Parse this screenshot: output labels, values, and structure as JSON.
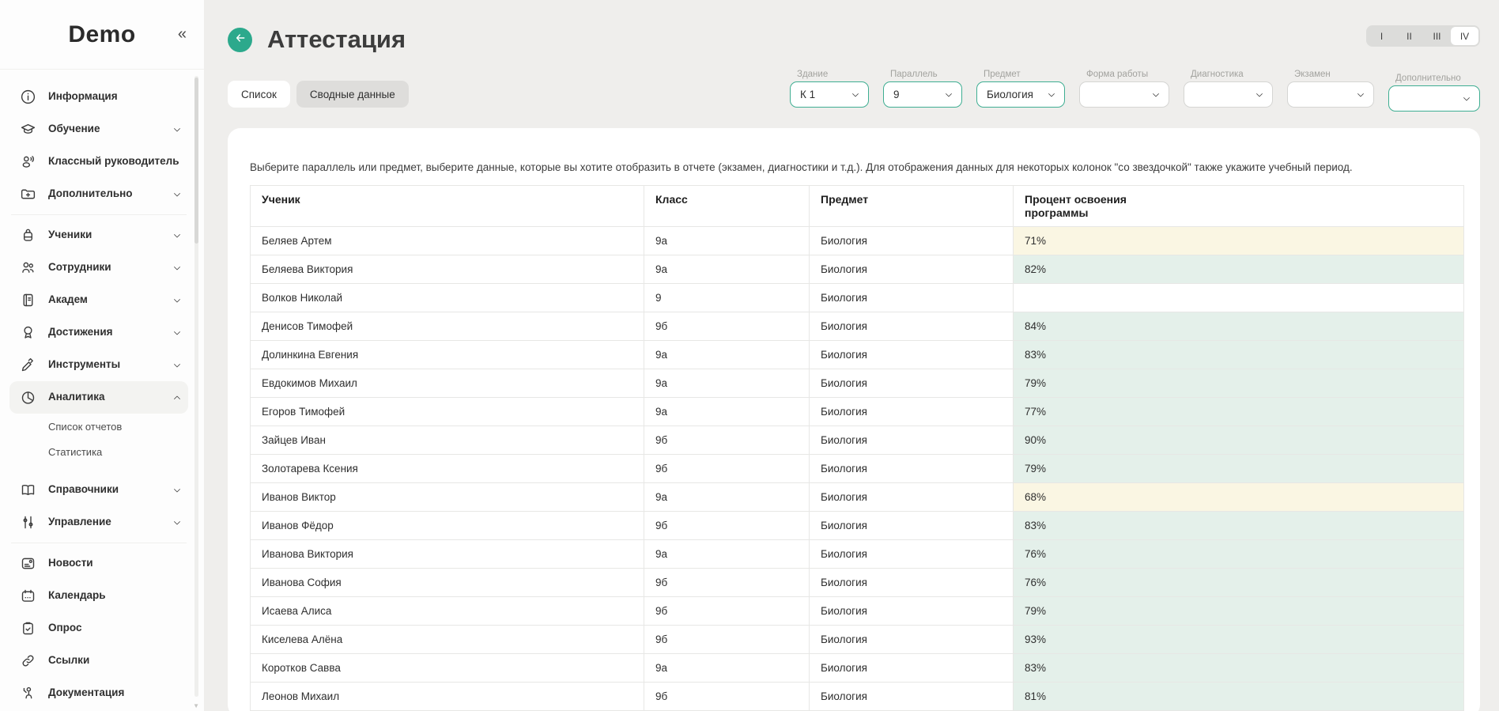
{
  "sidebar": {
    "logo": "Demo",
    "collapse_icon": "«",
    "items": [
      {
        "label": "Информация",
        "icon": "info-icon"
      },
      {
        "label": "Обучение",
        "icon": "education-icon"
      },
      {
        "label": "Классный руководитель",
        "icon": "class-teacher-icon"
      },
      {
        "label": "Дополнительно",
        "icon": "folder-plus-icon"
      },
      {
        "label": "Ученики",
        "icon": "backpack-icon"
      },
      {
        "label": "Сотрудники",
        "icon": "staff-icon"
      },
      {
        "label": "Академ",
        "icon": "journal-icon"
      },
      {
        "label": "Достижения",
        "icon": "medal-icon"
      },
      {
        "label": "Инструменты",
        "icon": "tools-icon"
      },
      {
        "label": "Аналитика",
        "icon": "pie-chart-icon",
        "active": true,
        "expanded": true
      },
      {
        "label": "Справочники",
        "icon": "open-book-icon"
      },
      {
        "label": "Управление",
        "icon": "sliders-icon"
      },
      {
        "label": "Новости",
        "icon": "news-icon"
      },
      {
        "label": "Календарь",
        "icon": "calendar-icon"
      },
      {
        "label": "Опрос",
        "icon": "survey-icon"
      },
      {
        "label": "Ссылки",
        "icon": "links-icon"
      },
      {
        "label": "Документация",
        "icon": "documentation-icon"
      }
    ],
    "submenu": [
      "Список отчетов",
      "Статистика"
    ]
  },
  "header": {
    "title": "Аттестация"
  },
  "periods": {
    "options": [
      "I",
      "II",
      "III",
      "IV"
    ],
    "active": "IV"
  },
  "tabs": {
    "items": [
      "Список",
      "Сводные данные"
    ],
    "active": "Сводные данные"
  },
  "filters": [
    {
      "label": "Здание",
      "value": "К 1",
      "filled": true
    },
    {
      "label": "Параллель",
      "value": "9",
      "filled": true
    },
    {
      "label": "Предмет",
      "value": "Биология",
      "filled": true
    },
    {
      "label": "Форма работы",
      "value": "",
      "filled": false
    },
    {
      "label": "Диагностика",
      "value": "",
      "filled": false
    },
    {
      "label": "Экзамен",
      "value": "",
      "filled": false
    },
    {
      "label": "Дополнительно",
      "value": "",
      "filled": true
    }
  ],
  "instruction": "Выберите параллель или предмет, выберите данные, которые вы хотите отобразить в отчете (экзамен, диагностики и т.д.). Для отображения данных для некоторых колонок \"со звездочкой\" также укажите учебный период.",
  "table": {
    "columns": [
      "Ученик",
      "Класс",
      "Предмет",
      "Процент освоения программы"
    ],
    "rows": [
      {
        "student": "Беляев Артем",
        "class": "9а",
        "subject": "Биология",
        "percent": "71%",
        "tone": "yellow"
      },
      {
        "student": "Беляева Виктория",
        "class": "9а",
        "subject": "Биология",
        "percent": "82%",
        "tone": "green"
      },
      {
        "student": "Волков Николай",
        "class": "9",
        "subject": "Биология",
        "percent": "",
        "tone": ""
      },
      {
        "student": "Денисов Тимофей",
        "class": "9б",
        "subject": "Биология",
        "percent": "84%",
        "tone": "green"
      },
      {
        "student": "Долинкина Евгения",
        "class": "9а",
        "subject": "Биология",
        "percent": "83%",
        "tone": "green"
      },
      {
        "student": "Евдокимов Михаил",
        "class": "9а",
        "subject": "Биология",
        "percent": "79%",
        "tone": "green"
      },
      {
        "student": "Егоров Тимофей",
        "class": "9а",
        "subject": "Биология",
        "percent": "77%",
        "tone": "green"
      },
      {
        "student": "Зайцев Иван",
        "class": "9б",
        "subject": "Биология",
        "percent": "90%",
        "tone": "green"
      },
      {
        "student": "Золотарева Ксения",
        "class": "9б",
        "subject": "Биология",
        "percent": "79%",
        "tone": "green"
      },
      {
        "student": "Иванов Виктор",
        "class": "9а",
        "subject": "Биология",
        "percent": "68%",
        "tone": "yellow"
      },
      {
        "student": "Иванов Фёдор",
        "class": "9б",
        "subject": "Биология",
        "percent": "83%",
        "tone": "green"
      },
      {
        "student": "Иванова Виктория",
        "class": "9а",
        "subject": "Биология",
        "percent": "76%",
        "tone": "green"
      },
      {
        "student": "Иванова София",
        "class": "9б",
        "subject": "Биология",
        "percent": "76%",
        "tone": "green"
      },
      {
        "student": "Исаева Алиса",
        "class": "9б",
        "subject": "Биология",
        "percent": "79%",
        "tone": "green"
      },
      {
        "student": "Киселева Алёна",
        "class": "9б",
        "subject": "Биология",
        "percent": "93%",
        "tone": "green"
      },
      {
        "student": "Коротков Савва",
        "class": "9а",
        "subject": "Биология",
        "percent": "83%",
        "tone": "green"
      },
      {
        "student": "Леонов Михаил",
        "class": "9б",
        "subject": "Биология",
        "percent": "81%",
        "tone": "green"
      }
    ]
  },
  "colors": {
    "accent_green": "#2ca98c",
    "filter_border_green": "#3fae92",
    "cell_green": "#e4f0ea",
    "cell_yellow": "#faf6e3",
    "page_background": "#efeeec"
  }
}
